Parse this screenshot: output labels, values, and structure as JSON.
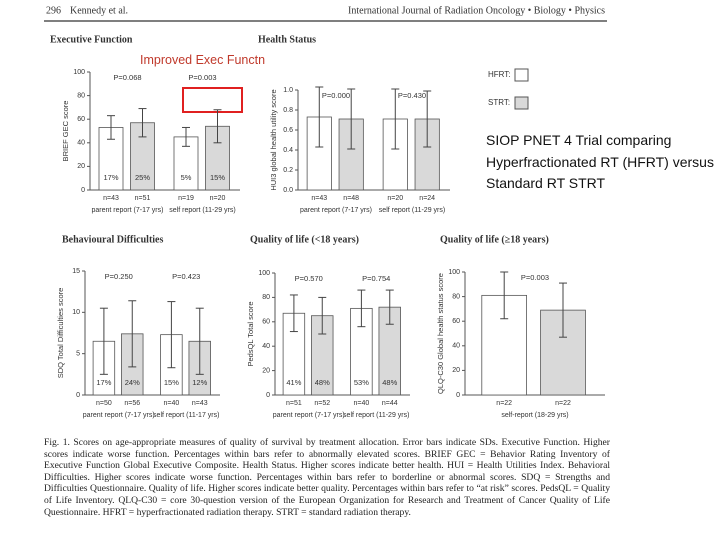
{
  "header": {
    "page": "296",
    "authors": "Kennedy et al.",
    "journal": "International Journal of Radiation Oncology • Biology • Physics"
  },
  "annotation": "Improved Exec Functn",
  "slide_text": "SIOP PNET 4 Trial comparing Hyperfractionated RT (HFRT) versus Standard RT STRT",
  "caption": "Fig. 1. Scores on age-appropriate measures of quality of survival by treatment allocation. Error bars indicate SDs. Executive Function. Higher scores indicate worse function. Percentages within bars refer to abnormally elevated scores. BRIEF GEC = Behavior Rating Inventory of Executive Function Global Executive Composite. Health Status. Higher scores indicate better health. HUI = Health Utilities Index. Behavioral Difficulties. Higher scores indicate worse function. Percentages within bars refer to borderline or abnormal scores. SDQ = Strengths and Difficulties Questionnaire. Quality of life. Higher scores indicate better quality. Percentages within bars refer to “at risk” scores. PedsQL = Quality of Life Inventory. QLQ-C30 = core 30-question version of the European Organization for Research and Treatment of Cancer Quality of Life Questionnaire. HFRT = hyperfractionated radiation therapy. STRT = standard radiation therapy.",
  "chart_data": [
    {
      "type": "bar",
      "title": "Executive Function",
      "ylabel": "BRIEF GEC score",
      "categories": [
        "parent report (7-17 yrs)",
        "self report (11-29 yrs)"
      ],
      "p_values": [
        "P=0.068",
        "P=0.003"
      ],
      "ylim": [
        0,
        100
      ],
      "yticks": [
        0,
        20,
        40,
        60,
        80,
        100
      ],
      "series": [
        {
          "color": "#ffffff",
          "values": [
            53,
            45
          ],
          "errors": [
            10,
            8
          ],
          "percentages": [
            "17%",
            "5%"
          ],
          "n": [
            "n=43",
            "n=19"
          ]
        },
        {
          "color": "#d9d9d9",
          "values": [
            57,
            54
          ],
          "errors": [
            12,
            14
          ],
          "percentages": [
            "25%",
            "15%"
          ],
          "n": [
            "n=51",
            "n=20"
          ]
        }
      ]
    },
    {
      "type": "bar",
      "title": "Health Status",
      "ylabel": "HUI3 global health utility score",
      "categories": [
        "parent report (7-17 yrs)",
        "self report (11-29 yrs)"
      ],
      "p_values": [
        "P=0.000",
        "P=0.430"
      ],
      "ylim": [
        0,
        1
      ],
      "yticks": [
        {
          "value": 0,
          "label": "0.0"
        },
        {
          "value": 0.2,
          "label": "0.2"
        },
        {
          "value": 0.4,
          "label": "0.4"
        },
        {
          "value": 0.6,
          "label": "0.6"
        },
        {
          "value": 0.8,
          "label": "0.8"
        },
        {
          "value": 1,
          "label": "1.0"
        }
      ],
      "legend": "right",
      "series": [
        {
          "name": "HFRT:",
          "color": "#ffffff",
          "values": [
            0.73,
            0.71
          ],
          "errors": [
            0.3,
            0.3
          ],
          "n": [
            "n=43",
            "n=20"
          ]
        },
        {
          "name": "STRT:",
          "color": "#d9d9d9",
          "values": [
            0.71,
            0.71
          ],
          "errors": [
            0.3,
            0.28
          ],
          "n": [
            "n=48",
            "n=24"
          ]
        }
      ]
    },
    {
      "type": "bar",
      "title": "Behavioural Difficulties",
      "ylabel": "SDQ Total Difficulties score",
      "categories": [
        "parent report (7-17 yrs)",
        "self report (11-17 yrs)"
      ],
      "p_values": [
        "P=0.250",
        "P=0.423"
      ],
      "ylim": [
        0,
        15
      ],
      "yticks": [
        0,
        5,
        10,
        15
      ],
      "series": [
        {
          "color": "#ffffff",
          "values": [
            6.5,
            7.3
          ],
          "errors": [
            4,
            4
          ],
          "percentages": [
            "17%",
            "15%"
          ],
          "n": [
            "n=50",
            "n=40"
          ]
        },
        {
          "color": "#d9d9d9",
          "values": [
            7.4,
            6.5
          ],
          "errors": [
            4,
            4
          ],
          "percentages": [
            "24%",
            "12%"
          ],
          "n": [
            "n=56",
            "n=43"
          ]
        }
      ]
    },
    {
      "type": "bar",
      "title": "Quality of life (<18 years)",
      "ylabel": "PedsQL Total score",
      "categories": [
        "parent report (7-17 yrs)",
        "self report (11-29 yrs)"
      ],
      "p_values": [
        "P=0.570",
        "P=0.754"
      ],
      "ylim": [
        0,
        100
      ],
      "yticks": [
        0,
        20,
        40,
        60,
        80,
        100
      ],
      "series": [
        {
          "color": "#ffffff",
          "values": [
            67,
            71
          ],
          "errors": [
            15,
            15
          ],
          "percentages": [
            "41%",
            "53%"
          ],
          "n": [
            "n=51",
            "n=40"
          ]
        },
        {
          "color": "#d9d9d9",
          "values": [
            65,
            72
          ],
          "errors": [
            15,
            14
          ],
          "percentages": [
            "48%",
            "48%"
          ],
          "n": [
            "n=52",
            "n=44"
          ]
        }
      ]
    },
    {
      "type": "bar",
      "title": "Quality of life (≥18 years)",
      "ylabel": "QLQ-C30 Global health status score",
      "categories": [
        "self-report (18-29 yrs)"
      ],
      "p_values": [
        "P=0.003"
      ],
      "ylim": [
        0,
        100
      ],
      "yticks": [
        0,
        20,
        40,
        60,
        80,
        100
      ],
      "series": [
        {
          "color": "#ffffff",
          "values": [
            81
          ],
          "errors": [
            19
          ],
          "n": [
            "n=22"
          ]
        },
        {
          "color": "#d9d9d9",
          "values": [
            69
          ],
          "errors": [
            22
          ],
          "n": [
            "n=22"
          ]
        }
      ]
    }
  ]
}
